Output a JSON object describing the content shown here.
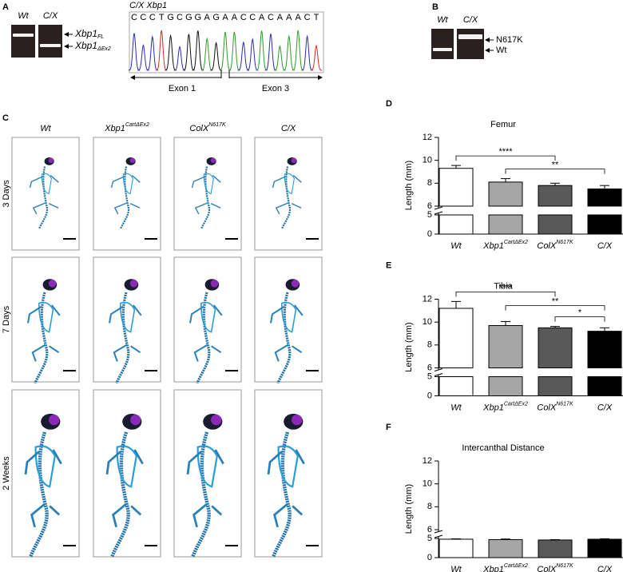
{
  "panels": {
    "A": {
      "label": "A",
      "gel_labels": [
        "Wt",
        "C/X"
      ],
      "bands": [
        {
          "name": "Xbp1",
          "sub": "FL"
        },
        {
          "name": "Xbp1",
          "sub": "ΔEx2"
        }
      ],
      "chromatogram": {
        "title": "C/X  Xbp1",
        "sequence": [
          "C",
          "C",
          "C",
          "T",
          "G",
          "C",
          "G",
          "G",
          "A",
          "G",
          "A",
          "A",
          "C",
          "C",
          "A",
          "C",
          "A",
          "A",
          "A",
          "C",
          "T"
        ],
        "exons": [
          "Exon 1",
          "Exon 3"
        ]
      }
    },
    "B": {
      "label": "B",
      "gel_labels": [
        "Wt",
        "C/X"
      ],
      "bands": [
        "N617K",
        "Wt"
      ]
    },
    "C": {
      "label": "C",
      "columns": [
        {
          "text": "Wt"
        },
        {
          "text": "Xbp1",
          "sup": "CartΔEx2"
        },
        {
          "text": "ColX",
          "sup": "N617K"
        },
        {
          "text": "C/X"
        }
      ],
      "rows": [
        "3 Days",
        "7 Days",
        "2 Weeks"
      ]
    }
  },
  "chart_data": [
    {
      "type": "bar",
      "panel_label": "D",
      "title": "Femur",
      "y_label": "Length (mm)",
      "categories": [
        "Wt",
        "Xbp1",
        "ColX",
        "C/X"
      ],
      "category_superscripts": [
        null,
        "CartΔEx2",
        "N617K",
        null
      ],
      "values": [
        9.3,
        8.1,
        7.8,
        7.5
      ],
      "errors": [
        0.25,
        0.3,
        0.2,
        0.3
      ],
      "colors": [
        "#ffffff",
        "#a6a6a6",
        "#595959",
        "#000000"
      ],
      "ylim": [
        6,
        12
      ],
      "yticks": [
        6,
        8,
        10,
        12
      ],
      "ylim_lower": [
        0,
        5
      ],
      "yticks_lower": [
        0,
        5
      ],
      "significance": [
        {
          "from": 0,
          "to": 2,
          "label": "****"
        },
        {
          "from": 1,
          "to": 3,
          "label": "**"
        }
      ]
    },
    {
      "type": "bar",
      "panel_label": "E",
      "title": "Tibia",
      "y_label": "Length (mm)",
      "categories": [
        "Wt",
        "Xbp1",
        "ColX",
        "C/X"
      ],
      "category_superscripts": [
        null,
        "CartΔEx2",
        "N617K",
        null
      ],
      "values": [
        11.2,
        9.7,
        9.5,
        9.2
      ],
      "errors": [
        0.6,
        0.35,
        0.12,
        0.3
      ],
      "colors": [
        "#ffffff",
        "#a6a6a6",
        "#595959",
        "#000000"
      ],
      "ylim": [
        6,
        12
      ],
      "yticks": [
        6,
        8,
        10,
        12
      ],
      "ylim_lower": [
        0,
        5
      ],
      "yticks_lower": [
        0,
        5
      ],
      "significance": [
        {
          "from": 0,
          "to": 2,
          "label": "****"
        },
        {
          "from": 1,
          "to": 3,
          "label": "**"
        },
        {
          "from": 2,
          "to": 3,
          "label": "*"
        }
      ]
    },
    {
      "type": "bar",
      "panel_label": "F",
      "title": "Intercanthal Distance",
      "y_label": "Length (mm)",
      "categories": [
        "Wt",
        "Xbp1",
        "ColX",
        "C/X"
      ],
      "category_superscripts": [
        null,
        "CartΔEx2",
        "N617K",
        null
      ],
      "values": [
        4.8,
        4.7,
        4.6,
        4.8
      ],
      "errors": [
        0.1,
        0.15,
        0.1,
        0.12
      ],
      "colors": [
        "#ffffff",
        "#a6a6a6",
        "#595959",
        "#000000"
      ],
      "ylim": [
        6,
        12
      ],
      "yticks": [
        6,
        8,
        10,
        12
      ],
      "ylim_lower": [
        0,
        5
      ],
      "yticks_lower": [
        0,
        5
      ],
      "significance": []
    }
  ]
}
